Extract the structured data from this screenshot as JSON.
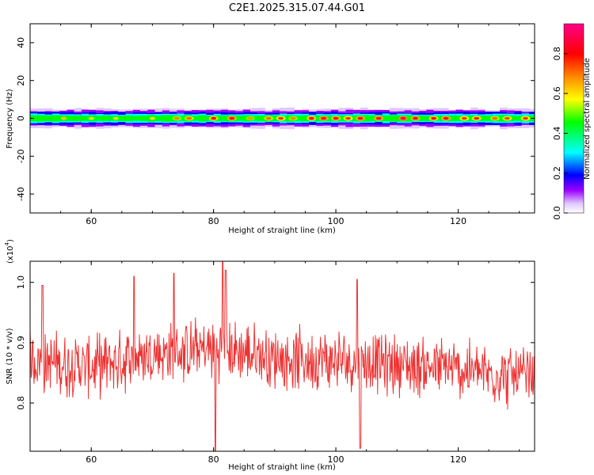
{
  "title": "C2E1.2025.315.07.44.G01",
  "chart_data": [
    {
      "type": "heatmap",
      "xlabel": "Height of straight line (km)",
      "ylabel": "Frequency (Hz)",
      "xlim": [
        50,
        132.5
      ],
      "ylim": [
        -50,
        50
      ],
      "x_ticks": [
        60,
        80,
        100,
        120
      ],
      "y_ticks": [
        -40,
        -20,
        0,
        20,
        40
      ],
      "band_center_hz": 0,
      "band_halfwidth_hz": 5,
      "colorbar": {
        "label": "Normalized spectral amplitude",
        "range": [
          0,
          0.95
        ],
        "ticks": [
          0.0,
          0.2,
          0.4,
          0.6,
          0.8
        ]
      },
      "hotspots": [
        {
          "x": 55.5,
          "amp": 0.65
        },
        {
          "x": 60,
          "amp": 0.6
        },
        {
          "x": 64,
          "amp": 0.62
        },
        {
          "x": 70,
          "amp": 0.62
        },
        {
          "x": 74,
          "amp": 0.72
        },
        {
          "x": 76,
          "amp": 0.75
        },
        {
          "x": 80,
          "amp": 0.85
        },
        {
          "x": 83,
          "amp": 0.9
        },
        {
          "x": 86,
          "amp": 0.7
        },
        {
          "x": 89,
          "amp": 0.75
        },
        {
          "x": 91,
          "amp": 0.8
        },
        {
          "x": 93,
          "amp": 0.72
        },
        {
          "x": 96,
          "amp": 0.85
        },
        {
          "x": 98,
          "amp": 0.92
        },
        {
          "x": 100,
          "amp": 0.88
        },
        {
          "x": 102,
          "amp": 0.8
        },
        {
          "x": 104,
          "amp": 0.9
        },
        {
          "x": 107,
          "amp": 0.9
        },
        {
          "x": 111,
          "amp": 0.95
        },
        {
          "x": 113,
          "amp": 0.9
        },
        {
          "x": 116,
          "amp": 0.85
        },
        {
          "x": 118,
          "amp": 0.9
        },
        {
          "x": 121,
          "amp": 0.8
        },
        {
          "x": 123,
          "amp": 0.82
        },
        {
          "x": 126,
          "amp": 0.75
        },
        {
          "x": 128,
          "amp": 0.78
        },
        {
          "x": 131,
          "amp": 0.8
        }
      ]
    },
    {
      "type": "line",
      "xlabel": "Height of straight line (km)",
      "ylabel": "SNR (10 * v/v)",
      "y_multiplier_label": "(x10",
      "y_multiplier_exponent": "4",
      "y_multiplier_close": ")",
      "xlim": [
        50,
        132.5
      ],
      "ylim": [
        0.72,
        1.035
      ],
      "x_ticks": [
        60,
        80,
        100,
        120
      ],
      "y_ticks": [
        0.8,
        0.9,
        1.0
      ],
      "series": [
        {
          "color": "#ee3333",
          "trend": [
            {
              "x": 50,
              "y": 0.87
            },
            {
              "x": 60,
              "y": 0.86
            },
            {
              "x": 70,
              "y": 0.88
            },
            {
              "x": 80,
              "y": 0.89
            },
            {
              "x": 90,
              "y": 0.875
            },
            {
              "x": 100,
              "y": 0.87
            },
            {
              "x": 110,
              "y": 0.865
            },
            {
              "x": 120,
              "y": 0.855
            },
            {
              "x": 132.5,
              "y": 0.84
            }
          ],
          "noise_amplitude": 0.06,
          "spikes": [
            {
              "x": 80.3,
              "y": 0.72
            },
            {
              "x": 81.5,
              "y": 1.035
            },
            {
              "x": 82.0,
              "y": 1.02
            },
            {
              "x": 104.0,
              "y": 0.725
            },
            {
              "x": 103.5,
              "y": 1.005
            },
            {
              "x": 67.0,
              "y": 1.01
            },
            {
              "x": 52.0,
              "y": 0.995
            },
            {
              "x": 73.5,
              "y": 1.015
            }
          ]
        }
      ]
    }
  ]
}
